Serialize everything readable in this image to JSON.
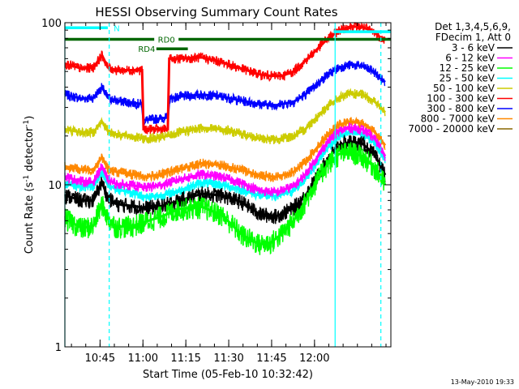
{
  "chart_data": {
    "type": "line",
    "title": "HESSI Observing Summary Count Rates",
    "xlabel": "Start Time (05-Feb-10 10:32:42)",
    "ylabel_main": "Count Rate (s",
    "ylabel_sup": "-1",
    "ylabel_rest": " detector",
    "ylabel_sup2": "-1",
    "ylabel_end": ")",
    "yscale": "log",
    "ylim": [
      1,
      100
    ],
    "y_ticks": [
      {
        "value": 1,
        "label": "1"
      },
      {
        "value": 10,
        "label": "10"
      },
      {
        "value": 100,
        "label": "100"
      }
    ],
    "xlim_minutes": [
      0,
      114
    ],
    "x_ticks": [
      {
        "minute": 12.3,
        "label": "10:45"
      },
      {
        "minute": 27.3,
        "label": "11:00"
      },
      {
        "minute": 42.3,
        "label": "11:15"
      },
      {
        "minute": 57.3,
        "label": "11:30"
      },
      {
        "minute": 72.3,
        "label": "11:45"
      },
      {
        "minute": 87.3,
        "label": "12:00"
      }
    ],
    "legend": {
      "position": "right",
      "header1": "Det 1,3,4,5,6,9,",
      "header2": "FDecim 1, Att 0",
      "entries": [
        {
          "label": "3 - 6 keV",
          "color": "#000000"
        },
        {
          "label": "6 - 12 keV",
          "color": "#ff00ff"
        },
        {
          "label": "12 - 25 keV",
          "color": "#00ff00"
        },
        {
          "label": "25 - 50 keV",
          "color": "#00ffff"
        },
        {
          "label": "50 - 100 keV",
          "color": "#cccc00"
        },
        {
          "label": "100 - 300 keV",
          "color": "#ff0000"
        },
        {
          "label": "300 - 800 keV",
          "color": "#0000ff"
        },
        {
          "label": "800 - 7000 keV",
          "color": "#ff8800"
        },
        {
          "label": "7000 - 20000 keV",
          "color": "#886600"
        }
      ]
    },
    "series": [
      {
        "name": "3 - 6 keV",
        "color": "#000000",
        "x": [
          0,
          6,
          10,
          13,
          15,
          18,
          24,
          28,
          34,
          40,
          48,
          55,
          62,
          68,
          74,
          80,
          84,
          88,
          92,
          96,
          100,
          104,
          108,
          110,
          112
        ],
        "y": [
          8.6,
          8.0,
          8.0,
          10.4,
          8.3,
          7.6,
          7.4,
          7.2,
          7.4,
          8.0,
          8.8,
          8.6,
          7.8,
          6.6,
          6.4,
          7.2,
          8.5,
          11.0,
          14.5,
          17.5,
          18.5,
          18.0,
          15.5,
          13.5,
          11.5
        ]
      },
      {
        "name": "6 - 12 keV",
        "color": "#ff00ff",
        "x": [
          0,
          6,
          10,
          13,
          15,
          18,
          24,
          28,
          34,
          40,
          48,
          55,
          62,
          68,
          74,
          80,
          84,
          88,
          92,
          96,
          100,
          104,
          108,
          110,
          112
        ],
        "y": [
          11.2,
          10.5,
          10.4,
          13.0,
          10.8,
          10.1,
          9.9,
          9.6,
          10.0,
          10.8,
          11.6,
          11.2,
          10.2,
          9.2,
          9.0,
          9.8,
          11.5,
          14.5,
          18.5,
          21.5,
          22.5,
          22.0,
          19.5,
          17.5,
          15.0
        ]
      },
      {
        "name": "12 - 25 keV",
        "color": "#00ff00",
        "x": [
          0,
          6,
          10,
          13,
          15,
          18,
          24,
          28,
          34,
          40,
          48,
          55,
          62,
          68,
          72,
          76,
          80,
          84,
          88,
          92,
          96,
          100,
          104,
          108,
          110,
          112
        ],
        "y": [
          6.2,
          5.4,
          5.6,
          7.6,
          6.2,
          5.5,
          5.6,
          5.9,
          6.4,
          7.1,
          7.3,
          6.5,
          4.9,
          4.3,
          4.4,
          5.0,
          6.0,
          7.8,
          10.5,
          13.5,
          15.5,
          16.0,
          15.0,
          13.0,
          11.5,
          10.0
        ]
      },
      {
        "name": "25 - 50 keV",
        "color": "#00ffff",
        "x": [
          0,
          6,
          10,
          13,
          15,
          18,
          24,
          28,
          34,
          40,
          48,
          55,
          62,
          68,
          74,
          80,
          84,
          88,
          92,
          96,
          100,
          104,
          108,
          110,
          112
        ],
        "y": [
          10.2,
          9.7,
          9.8,
          12.0,
          10.0,
          9.4,
          8.9,
          8.4,
          8.6,
          9.2,
          10.3,
          10.0,
          9.3,
          8.6,
          8.5,
          9.2,
          10.8,
          13.5,
          17.0,
          20.0,
          21.0,
          20.5,
          18.5,
          16.5,
          14.5
        ]
      },
      {
        "name": "50 - 100 keV",
        "color": "#cccc00",
        "x": [
          0,
          6,
          10,
          13,
          15,
          18,
          24,
          28,
          34,
          40,
          48,
          55,
          62,
          68,
          74,
          80,
          84,
          88,
          92,
          96,
          100,
          104,
          108,
          110,
          112
        ],
        "y": [
          22.0,
          21.0,
          21.2,
          24.5,
          21.5,
          20.5,
          19.8,
          19.2,
          19.6,
          21.0,
          22.5,
          22.0,
          20.6,
          19.3,
          19.0,
          20.0,
          22.0,
          26.0,
          30.5,
          34.5,
          36.5,
          36.0,
          33.0,
          30.5,
          28.0
        ]
      },
      {
        "name": "100 - 300 keV",
        "color": "#ff0000",
        "x": [
          0,
          6,
          10,
          13,
          15,
          18,
          24,
          27,
          27.5,
          36,
          36.5,
          40,
          48,
          55,
          62,
          68,
          72,
          76,
          80,
          84,
          88,
          92,
          96,
          100,
          104,
          108,
          110,
          112
        ],
        "y": [
          56,
          52,
          53,
          63,
          53,
          51,
          51,
          51,
          22,
          22,
          60,
          60,
          61,
          57,
          52,
          48,
          47,
          47,
          50,
          58,
          68,
          80,
          90,
          95,
          94,
          88,
          82,
          78
        ]
      },
      {
        "name": "300 - 800 keV",
        "color": "#0000ff",
        "x": [
          0,
          6,
          10,
          13,
          15,
          18,
          24,
          27,
          27.5,
          36,
          36.5,
          40,
          48,
          55,
          62,
          68,
          74,
          80,
          84,
          88,
          92,
          96,
          100,
          104,
          108,
          110,
          112
        ],
        "y": [
          36,
          34,
          34.5,
          40,
          34.5,
          33,
          32,
          31.5,
          25,
          26,
          34,
          35,
          36,
          35,
          33,
          31.5,
          31,
          32.5,
          36,
          41.5,
          48,
          53,
          55,
          54,
          50,
          46,
          43
        ]
      },
      {
        "name": "800 - 7000 keV",
        "color": "#ff8800",
        "x": [
          0,
          6,
          10,
          13,
          15,
          18,
          24,
          28,
          34,
          40,
          48,
          55,
          62,
          68,
          74,
          80,
          84,
          88,
          92,
          96,
          100,
          104,
          108,
          110,
          112
        ],
        "y": [
          13.0,
          12.4,
          12.4,
          14.8,
          12.6,
          12.0,
          11.6,
          11.2,
          11.6,
          12.5,
          13.6,
          13.2,
          12.3,
          11.4,
          11.2,
          12.0,
          13.8,
          16.8,
          20.5,
          23.5,
          24.5,
          24.0,
          21.5,
          19.5,
          17.5
        ]
      }
    ],
    "status_bars": [
      {
        "label": "N",
        "color": "#00ffff",
        "start": 0,
        "end": 15,
        "y": 93
      },
      {
        "label": "RD0",
        "color": "#006600",
        "start": 0,
        "end": 114,
        "y": 79
      },
      {
        "label": "RD4",
        "color": "#006600",
        "start": 32,
        "end": 43,
        "y": 69
      },
      {
        "label": "",
        "color": "#00ffff",
        "start": 94,
        "end": 114,
        "y": 88
      }
    ],
    "vertical_lines": [
      {
        "minute": 0,
        "color": "#00ffff",
        "dashed": false
      },
      {
        "minute": 15.5,
        "color": "#00ffff",
        "dashed": true
      },
      {
        "minute": 94.5,
        "color": "#00ffff",
        "dashed": false
      },
      {
        "minute": 110.5,
        "color": "#00ffff",
        "dashed": true
      }
    ],
    "footer_date": "13-May-2010 19:33"
  }
}
